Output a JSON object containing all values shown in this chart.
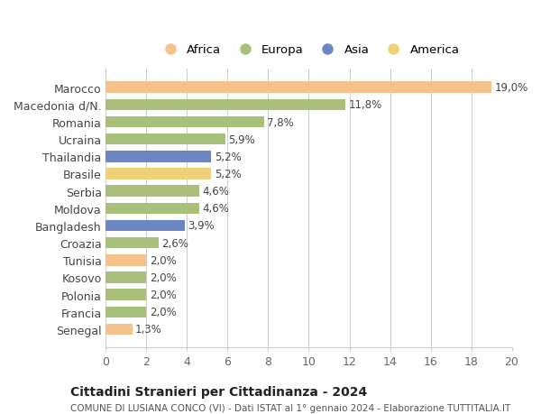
{
  "countries": [
    "Marocco",
    "Macedonia d/N.",
    "Romania",
    "Ucraina",
    "Thailandia",
    "Brasile",
    "Serbia",
    "Moldova",
    "Bangladesh",
    "Croazia",
    "Tunisia",
    "Kosovo",
    "Polonia",
    "Francia",
    "Senegal"
  ],
  "values": [
    19.0,
    11.8,
    7.8,
    5.9,
    5.2,
    5.2,
    4.6,
    4.6,
    3.9,
    2.6,
    2.0,
    2.0,
    2.0,
    2.0,
    1.3
  ],
  "labels": [
    "19,0%",
    "11,8%",
    "7,8%",
    "5,9%",
    "5,2%",
    "5,2%",
    "4,6%",
    "4,6%",
    "3,9%",
    "2,6%",
    "2,0%",
    "2,0%",
    "2,0%",
    "2,0%",
    "1,3%"
  ],
  "colors": [
    "#F4C28A",
    "#A8C07A",
    "#A8C07A",
    "#A8C07A",
    "#6B86C2",
    "#F0D078",
    "#A8C07A",
    "#A8C07A",
    "#6B86C2",
    "#A8C07A",
    "#F4C28A",
    "#A8C07A",
    "#A8C07A",
    "#A8C07A",
    "#F4C28A"
  ],
  "legend_labels": [
    "Africa",
    "Europa",
    "Asia",
    "America"
  ],
  "legend_colors": [
    "#F4C28A",
    "#A8C07A",
    "#6B86C2",
    "#F0D078"
  ],
  "title1": "Cittadini Stranieri per Cittadinanza - 2024",
  "title2": "COMUNE DI LUSIANA CONCO (VI) - Dati ISTAT al 1° gennaio 2024 - Elaborazione TUTTITALIA.IT",
  "xlim": [
    0,
    20
  ],
  "xticks": [
    0,
    2,
    4,
    6,
    8,
    10,
    12,
    14,
    16,
    18,
    20
  ],
  "bg_color": "#ffffff",
  "grid_color": "#cccccc"
}
